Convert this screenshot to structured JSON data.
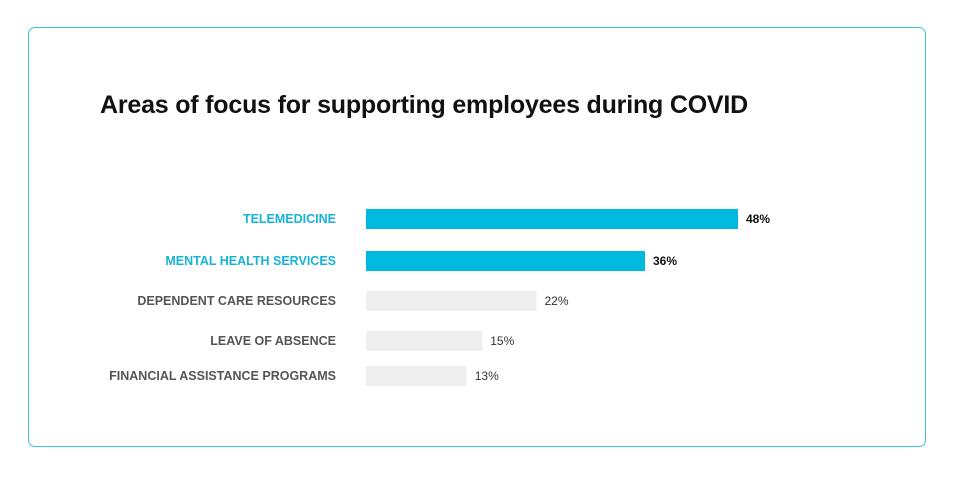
{
  "chart_data": {
    "type": "bar",
    "orientation": "horizontal",
    "title": "Areas of focus for supporting employees during COVID",
    "xlabel": "",
    "ylabel": "",
    "xlim": [
      0,
      48
    ],
    "grid": false,
    "categories": [
      "TELEMEDICINE",
      "MENTAL HEALTH SERVICES",
      "DEPENDENT CARE RESOURCES",
      "LEAVE OF ABSENCE",
      "FINANCIAL ASSISTANCE PROGRAMS"
    ],
    "values": [
      48,
      36,
      22,
      15,
      13
    ],
    "value_labels": [
      "48%",
      "36%",
      "22%",
      "15%",
      "13%"
    ],
    "highlighted": [
      true,
      true,
      false,
      false,
      false
    ]
  },
  "colors": {
    "highlight_bar": "#00b9df",
    "highlight_label": "#17b3d6",
    "muted_bar": "#efefef",
    "muted_label": "#555555",
    "value_highlight": "#111111",
    "value_muted": "#333333",
    "border": "#3ec3db"
  }
}
